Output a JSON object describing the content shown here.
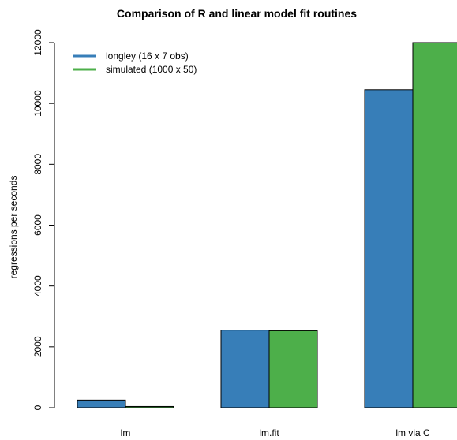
{
  "chart_data": {
    "type": "bar",
    "title": "Comparison of R and linear model fit routines",
    "xlabel": "",
    "ylabel": "regressions per seconds",
    "categories": [
      "lm",
      "lm.fit",
      "lm via C"
    ],
    "series": [
      {
        "name": "longley (16 x 7 obs)",
        "color": "#377eb8",
        "values": [
          250,
          2550,
          10450
        ]
      },
      {
        "name": "simulated (1000 x 50)",
        "color": "#4daf4a",
        "values": [
          40,
          2530,
          12000
        ]
      }
    ],
    "ylim": [
      0,
      12000
    ],
    "yticks": [
      0,
      2000,
      4000,
      6000,
      8000,
      10000,
      12000
    ],
    "legend_position": "top-left",
    "grid": false
  }
}
